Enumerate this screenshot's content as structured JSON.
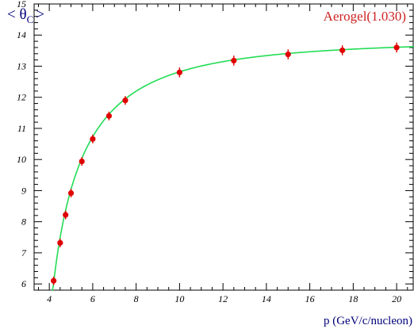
{
  "chart_data": {
    "type": "scatter",
    "title": "",
    "xlabel": "p (GeV/c/nucleon)",
    "ylabel": {
      "main": "< θ",
      "sub": "C",
      "close": ">"
    },
    "annotation": "Aerogel(1.030)",
    "xlim": [
      3.3,
      20.8
    ],
    "ylim": [
      5.8,
      15.0
    ],
    "x_ticks": [
      4,
      6,
      8,
      10,
      12,
      14,
      16,
      18,
      20
    ],
    "y_ticks": [
      6,
      7,
      8,
      9,
      10,
      11,
      12,
      13,
      14,
      15
    ],
    "grid": false,
    "colors": {
      "points": "#e00000",
      "fit": "#22dd55",
      "axis_text": "#00007a",
      "annotation": "#cc2222",
      "frame": "#000000"
    },
    "series": [
      {
        "x": [
          4.2,
          4.5,
          4.75,
          5.0,
          5.5,
          6.0,
          6.75,
          7.5,
          10.0,
          12.5,
          15.0,
          17.5,
          20.0
        ],
        "y": [
          6.1,
          7.32,
          8.22,
          8.92,
          9.94,
          10.66,
          11.4,
          11.9,
          12.8,
          13.18,
          13.38,
          13.51,
          13.6
        ],
        "yerr": [
          0.14,
          0.14,
          0.14,
          0.14,
          0.14,
          0.14,
          0.14,
          0.14,
          0.16,
          0.16,
          0.16,
          0.16,
          0.16
        ]
      }
    ],
    "fit": {
      "type": "cherenkov-angle",
      "refractive_index": 1.03,
      "x_start": 4.1,
      "x_end": 20.8
    }
  }
}
